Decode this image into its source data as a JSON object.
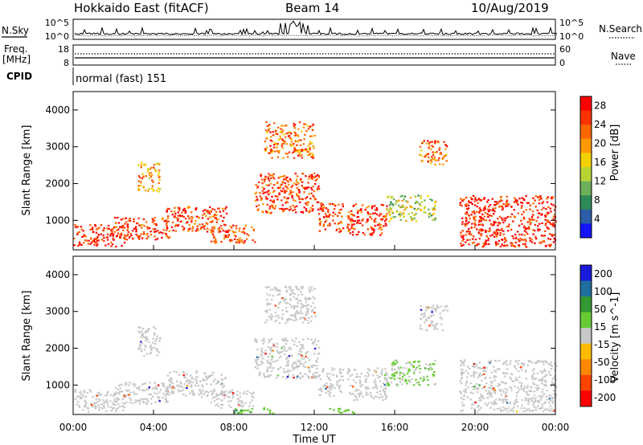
{
  "header": {
    "station": "Hokkaido East (fitACF)",
    "beam": "Beam 14",
    "date": "10/Aug/2019"
  },
  "side_labels": {
    "nsky": "N.Sky",
    "freq": "Freq.",
    "freq_unit": "[MHz]",
    "cpid": "CPID",
    "nsearch": "N.Search",
    "nave": "Nave"
  },
  "top_panels": {
    "nsky_ticks": [
      "10^5",
      "10^0"
    ],
    "nsearch_ticks": [
      "10^5",
      "10^0"
    ],
    "freq_ticks": [
      "18",
      "8"
    ],
    "nave_ticks": [
      "60",
      "0"
    ],
    "cpid_text": "normal (fast) 151"
  },
  "colors": {
    "power": [
      "#1414ff",
      "#2c5ea8",
      "#2e8b57",
      "#6cb05a",
      "#b7d434",
      "#f5d000",
      "#ff9900",
      "#ff6600",
      "#ff3300",
      "#ff0000"
    ],
    "velocity": [
      "#ff0000",
      "#ff4400",
      "#ff8800",
      "#ffbb00",
      "#c8c8c8",
      "#66cc33",
      "#339933",
      "#1f6fa0",
      "#1a1adc"
    ],
    "ground_scatter": "#c8c8c8"
  },
  "chart_data": [
    {
      "type": "heatmap",
      "panel": "power",
      "ylabel": "Slant Range [km]",
      "yticks": [
        "1000",
        "2000",
        "3000",
        "4000"
      ],
      "ylim": [
        200,
        4500
      ],
      "xticks": [
        "00:00",
        "04:00",
        "08:00",
        "12:00",
        "16:00",
        "20:00",
        "00:00"
      ],
      "xlim": [
        0,
        24
      ],
      "colorbar_label": "Power [dB]",
      "colorbar_ticks": [
        "4",
        "8",
        "12",
        "16",
        "20",
        "24",
        "28"
      ],
      "colorbar_range": [
        0,
        30
      ],
      "patches": [
        {
          "t": [
            0.0,
            2.6
          ],
          "r": [
            300,
            900
          ],
          "dB": 27
        },
        {
          "t": [
            2.0,
            4.8
          ],
          "r": [
            500,
            1100
          ],
          "dB": 26
        },
        {
          "t": [
            4.6,
            7.6
          ],
          "r": [
            700,
            1400
          ],
          "dB": 25
        },
        {
          "t": [
            6.8,
            9.0
          ],
          "r": [
            400,
            900
          ],
          "dB": 24
        },
        {
          "t": [
            3.2,
            4.3
          ],
          "r": [
            1800,
            2600
          ],
          "dB": 20
        },
        {
          "t": [
            9.5,
            12.0
          ],
          "r": [
            2700,
            3700
          ],
          "dB": 22
        },
        {
          "t": [
            9.0,
            12.2
          ],
          "r": [
            1200,
            2300
          ],
          "dB": 25
        },
        {
          "t": [
            12.2,
            13.4
          ],
          "r": [
            700,
            1500
          ],
          "dB": 24
        },
        {
          "t": [
            13.6,
            15.6
          ],
          "r": [
            600,
            1500
          ],
          "dB": 26
        },
        {
          "t": [
            15.6,
            18.0
          ],
          "r": [
            1000,
            1700
          ],
          "dB": 14
        },
        {
          "t": [
            17.2,
            18.6
          ],
          "r": [
            2500,
            3200
          ],
          "dB": 22
        },
        {
          "t": [
            19.2,
            24.0
          ],
          "r": [
            300,
            1700
          ],
          "dB": 27
        }
      ]
    },
    {
      "type": "heatmap",
      "panel": "velocity",
      "ylabel": "Slant Range [km]",
      "yticks": [
        "1000",
        "2000",
        "3000",
        "4000"
      ],
      "ylim": [
        200,
        4500
      ],
      "xticks": [
        "00:00",
        "04:00",
        "08:00",
        "12:00",
        "16:00",
        "20:00",
        "00:00"
      ],
      "xlim": [
        0,
        24
      ],
      "xlabel": "Time UT",
      "colorbar_label": "Velocity [m s^-1]",
      "colorbar_ticks": [
        "200",
        "100",
        "50",
        "15",
        "-15",
        "-50",
        "-100",
        "-200"
      ],
      "colorbar_range": [
        -250,
        250
      ],
      "patches": [
        {
          "t": [
            0.0,
            2.6
          ],
          "r": [
            300,
            900
          ],
          "v": 0
        },
        {
          "t": [
            2.0,
            4.8
          ],
          "r": [
            500,
            1100
          ],
          "v": 0
        },
        {
          "t": [
            4.6,
            7.6
          ],
          "r": [
            700,
            1400
          ],
          "v": 0
        },
        {
          "t": [
            6.8,
            9.0
          ],
          "r": [
            400,
            900
          ],
          "v": 0
        },
        {
          "t": [
            3.2,
            4.3
          ],
          "r": [
            1800,
            2600
          ],
          "v": 0
        },
        {
          "t": [
            9.5,
            12.0
          ],
          "r": [
            2700,
            3700
          ],
          "v": 0
        },
        {
          "t": [
            9.0,
            12.2
          ],
          "r": [
            1200,
            2300
          ],
          "v": 0
        },
        {
          "t": [
            12.2,
            13.4
          ],
          "r": [
            700,
            1500
          ],
          "v": 0
        },
        {
          "t": [
            13.6,
            15.6
          ],
          "r": [
            600,
            1500
          ],
          "v": 0
        },
        {
          "t": [
            15.6,
            18.0
          ],
          "r": [
            1000,
            1700
          ],
          "v": 20
        },
        {
          "t": [
            17.2,
            18.6
          ],
          "r": [
            2500,
            3200
          ],
          "v": 0
        },
        {
          "t": [
            19.2,
            24.0
          ],
          "r": [
            300,
            1700
          ],
          "v": 0
        },
        {
          "t": [
            8.0,
            10.0
          ],
          "r": [
            250,
            420
          ],
          "v": 40
        },
        {
          "t": [
            12.5,
            14.0
          ],
          "r": [
            250,
            400
          ],
          "v": 35
        }
      ]
    }
  ]
}
